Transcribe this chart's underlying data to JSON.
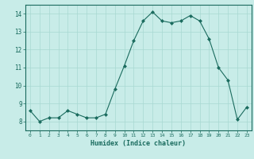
{
  "x": [
    0,
    1,
    2,
    3,
    4,
    5,
    6,
    7,
    8,
    9,
    10,
    11,
    12,
    13,
    14,
    15,
    16,
    17,
    18,
    19,
    20,
    21,
    22,
    23
  ],
  "y": [
    8.6,
    8.0,
    8.2,
    8.2,
    8.6,
    8.4,
    8.2,
    8.2,
    8.4,
    9.8,
    11.1,
    12.5,
    13.6,
    14.1,
    13.6,
    13.5,
    13.6,
    13.9,
    13.6,
    12.6,
    11.0,
    10.3,
    8.1,
    8.8
  ],
  "line_color": "#1a6b5e",
  "marker": "D",
  "marker_size": 2.0,
  "bg_color": "#c8ece8",
  "grid_color": "#a8d8d2",
  "grid_color_minor": "#b8e4e0",
  "xlabel": "Humidex (Indice chaleur)",
  "ylim": [
    7.5,
    14.5
  ],
  "xlim": [
    -0.5,
    23.5
  ],
  "yticks": [
    8,
    9,
    10,
    11,
    12,
    13,
    14
  ],
  "xticks": [
    0,
    1,
    2,
    3,
    4,
    5,
    6,
    7,
    8,
    9,
    10,
    11,
    12,
    13,
    14,
    15,
    16,
    17,
    18,
    19,
    20,
    21,
    22,
    23
  ],
  "tick_color": "#1a6b5e",
  "label_color": "#1a6b5e",
  "spine_color": "#1a6b5e"
}
